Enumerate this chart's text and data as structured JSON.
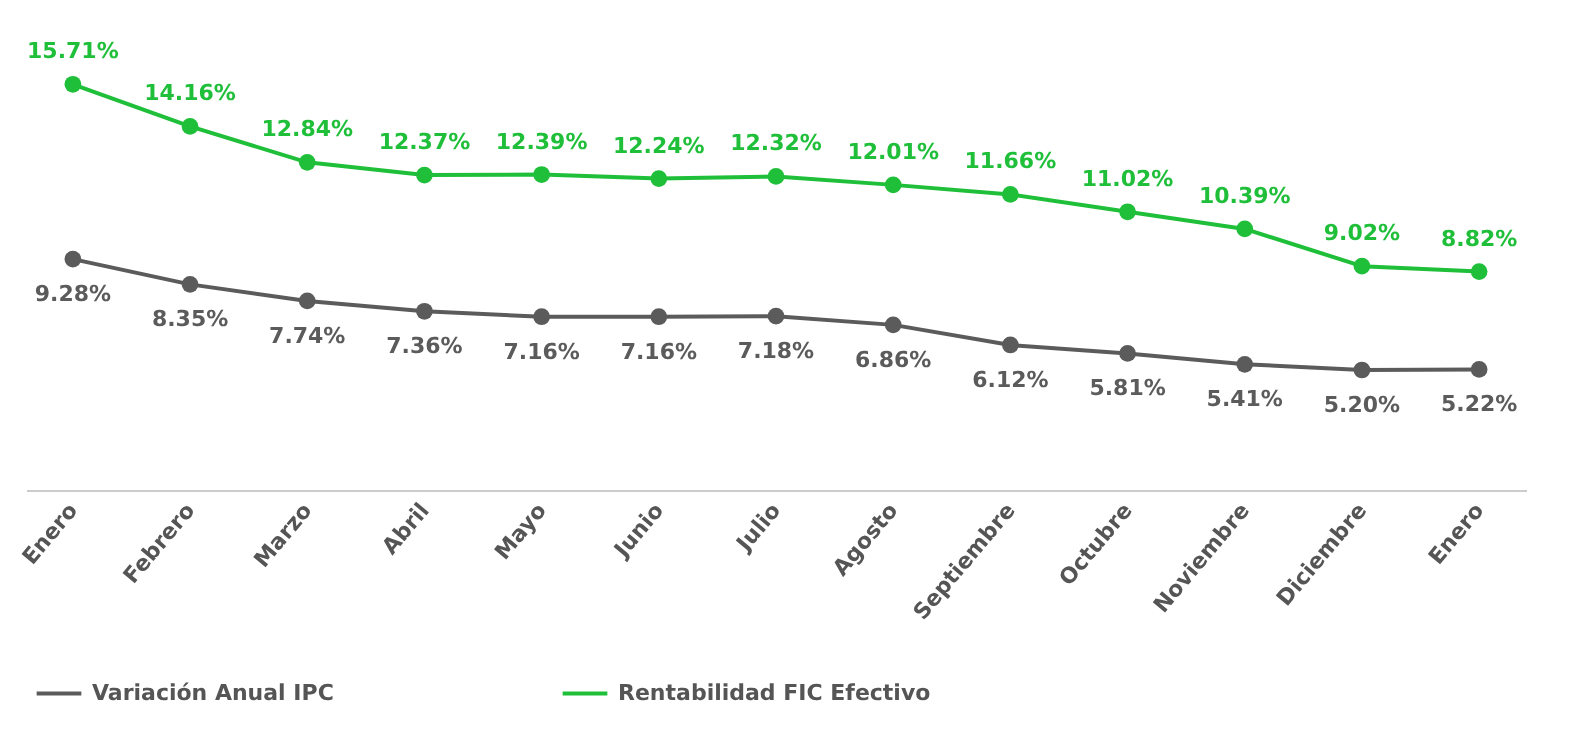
{
  "chart_data": {
    "type": "line",
    "tick_labels": "x",
    "categories": [
      "Enero",
      "Febrero",
      "Marzo",
      "Abril",
      "Mayo",
      "Junio",
      "Julio",
      "Agosto",
      "Septiembre",
      "Octubre",
      "Noviembre",
      "Diciembre",
      "Enero"
    ],
    "series": [
      {
        "name": "Variación Anual IPC",
        "color": "#5b5b5b",
        "values": [
          9.28,
          8.35,
          7.74,
          7.36,
          7.16,
          7.16,
          7.18,
          6.86,
          6.12,
          5.81,
          5.41,
          5.2,
          5.22
        ],
        "value_labels": [
          "9.28%",
          "8.35%",
          "7.74%",
          "7.36%",
          "7.16%",
          "7.16%",
          "7.18%",
          "6.86%",
          "6.12%",
          "5.81%",
          "5.41%",
          "5.20%",
          "5.22%"
        ]
      },
      {
        "name": "Rentabilidad FIC Efectivo",
        "color": "#1fbf3a",
        "values": [
          15.71,
          14.16,
          12.84,
          12.37,
          12.39,
          12.24,
          12.32,
          12.01,
          11.66,
          11.02,
          10.39,
          9.02,
          8.82
        ],
        "value_labels": [
          "15.71%",
          "14.16%",
          "12.84%",
          "12.37%",
          "12.39%",
          "12.24%",
          "12.32%",
          "12.01%",
          "11.66%",
          "11.02%",
          "10.39%",
          "9.02%",
          "8.82%"
        ]
      }
    ],
    "marker": "circle",
    "legend": "bottom",
    "grid": false
  }
}
